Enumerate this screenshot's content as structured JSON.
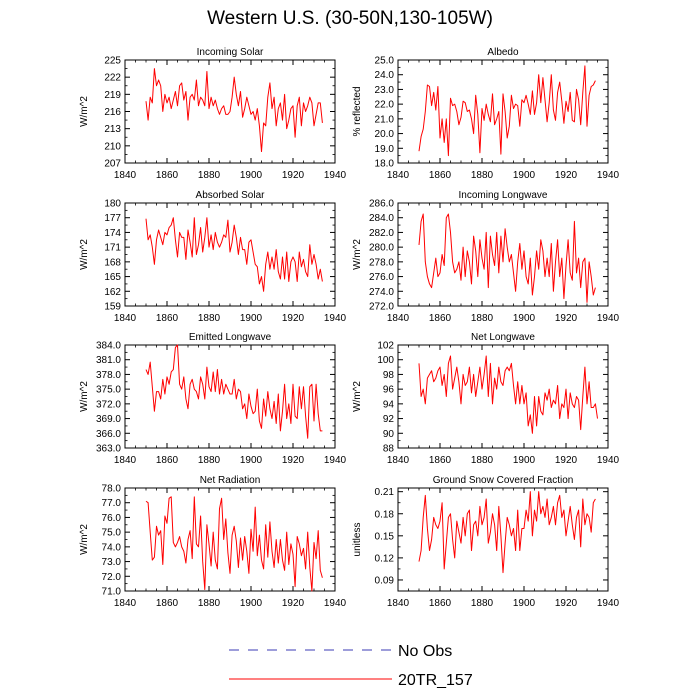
{
  "title": "Western U.S. (30-50N,130-105W)",
  "colors": {
    "model": "#ff0000",
    "obs": "#3b3bb5",
    "axis": "#000000"
  },
  "legend": [
    {
      "label": "No Obs",
      "style": "dashed",
      "color": "#3b3bb5"
    },
    {
      "label": "20TR_157",
      "style": "solid",
      "color": "#ff0000"
    }
  ],
  "chart_data": [
    {
      "type": "line",
      "title": "Incoming Solar",
      "ylabel": "W/m^2",
      "xlim": [
        1840,
        1940
      ],
      "xticks": [
        1840,
        1860,
        1880,
        1900,
        1920,
        1940
      ],
      "ylim": [
        207,
        225
      ],
      "yticks": [
        207,
        210,
        213,
        216,
        219,
        222,
        225
      ],
      "x_start": 1850,
      "series": [
        {
          "name": "20TR_157",
          "values": [
            217.8,
            214.5,
            218.5,
            217.5,
            223.5,
            220.5,
            221.5,
            220.5,
            216.0,
            219.0,
            217.5,
            218.5,
            216.5,
            218.0,
            219.5,
            217.0,
            220.5,
            221.0,
            218.0,
            219.5,
            214.5,
            218.5,
            219.0,
            218.0,
            221.5,
            217.0,
            218.5,
            218.0,
            217.0,
            223.0,
            216.5,
            218.5,
            217.0,
            218.0,
            216.5,
            215.5,
            216.5,
            217.0,
            215.5,
            215.5,
            216.0,
            218.5,
            222.0,
            219.0,
            217.0,
            219.5,
            215.0,
            216.5,
            218.5,
            217.0,
            215.5,
            216.0,
            214.5,
            216.5,
            213.5,
            209.0,
            214.0,
            213.5,
            218.5,
            221.0,
            216.5,
            218.5,
            213.5,
            216.5,
            217.5,
            214.5,
            219.0,
            213.0,
            214.5,
            216.5,
            217.0,
            211.5,
            217.0,
            218.5,
            213.5,
            217.5,
            216.0,
            217.0,
            218.5,
            217.5,
            213.5,
            215.5,
            217.5,
            217.5,
            214.0
          ]
        }
      ]
    },
    {
      "type": "line",
      "title": "Albedo",
      "ylabel": "% reflected",
      "xlim": [
        1840,
        1940
      ],
      "xticks": [
        1840,
        1860,
        1880,
        1900,
        1920,
        1940
      ],
      "ylim": [
        18.0,
        25.0
      ],
      "yticks": [
        "18.0",
        "19.0",
        "20.0",
        "21.0",
        "22.0",
        "23.0",
        "24.0",
        "25.0"
      ],
      "x_start": 1850,
      "series": [
        {
          "name": "20TR_157",
          "values": [
            18.8,
            19.8,
            20.3,
            21.5,
            23.3,
            23.2,
            21.9,
            22.8,
            21.6,
            23.2,
            19.7,
            21.0,
            19.4,
            21.0,
            18.5,
            22.4,
            21.9,
            22.0,
            21.5,
            20.6,
            21.1,
            22.2,
            22.1,
            21.5,
            21.6,
            21.0,
            20.0,
            22.6,
            21.3,
            18.7,
            21.7,
            20.9,
            22.0,
            21.3,
            20.8,
            22.7,
            20.6,
            21.0,
            21.5,
            18.6,
            22.7,
            21.5,
            19.7,
            20.5,
            22.6,
            21.7,
            22.0,
            21.9,
            20.5,
            22.3,
            22.1,
            22.6,
            22.0,
            21.3,
            22.9,
            21.3,
            22.1,
            24.0,
            22.1,
            23.8,
            22.3,
            20.8,
            22.1,
            24.0,
            21.6,
            20.9,
            22.8,
            23.5,
            22.2,
            20.7,
            22.2,
            21.5,
            22.8,
            20.9,
            20.8,
            23.0,
            22.3,
            20.6,
            22.8,
            24.6,
            20.5,
            22.6,
            23.2,
            23.3,
            23.6
          ]
        }
      ]
    },
    {
      "type": "line",
      "title": "Absorbed Solar",
      "ylabel": "W/m^2",
      "xlim": [
        1840,
        1940
      ],
      "xticks": [
        1840,
        1860,
        1880,
        1900,
        1920,
        1940
      ],
      "ylim": [
        159,
        180
      ],
      "yticks": [
        159,
        162,
        165,
        168,
        171,
        174,
        177,
        180
      ],
      "x_start": 1850,
      "series": [
        {
          "name": "20TR_157",
          "values": [
            176.8,
            172.5,
            173.5,
            171.0,
            167.5,
            172.5,
            174.5,
            173.0,
            171.5,
            174.0,
            173.5,
            175.0,
            175.5,
            177.0,
            172.5,
            169.0,
            174.0,
            173.0,
            173.0,
            168.5,
            174.5,
            172.0,
            169.0,
            177.0,
            169.5,
            171.5,
            175.0,
            170.0,
            173.0,
            177.0,
            171.0,
            173.5,
            170.5,
            174.0,
            172.0,
            171.0,
            172.0,
            173.5,
            173.0,
            176.5,
            170.0,
            172.0,
            175.5,
            173.0,
            169.5,
            173.0,
            170.5,
            170.5,
            167.5,
            172.0,
            172.5,
            170.0,
            167.5,
            167.0,
            163.5,
            165.0,
            162.0,
            167.5,
            170.0,
            166.5,
            169.0,
            166.5,
            170.5,
            166.0,
            164.5,
            169.0,
            164.5,
            170.0,
            164.0,
            168.0,
            169.0,
            168.0,
            164.0,
            170.0,
            167.0,
            168.5,
            166.0,
            165.0,
            171.5,
            167.5,
            169.5,
            167.5,
            164.5,
            166.5,
            164.0
          ]
        }
      ]
    },
    {
      "type": "line",
      "title": "Incoming Longwave",
      "ylabel": "W/m^2",
      "xlim": [
        1840,
        1940
      ],
      "xticks": [
        1840,
        1860,
        1880,
        1900,
        1920,
        1940
      ],
      "ylim": [
        272.0,
        286.0
      ],
      "yticks": [
        "272.0",
        "274.0",
        "276.0",
        "278.0",
        "280.0",
        "282.0",
        "284.0",
        "286.0"
      ],
      "x_start": 1850,
      "series": [
        {
          "name": "20TR_157",
          "values": [
            280.3,
            283.5,
            284.5,
            278.0,
            276.0,
            275.0,
            274.5,
            276.5,
            278.5,
            276.0,
            276.5,
            279.0,
            277.5,
            284.0,
            284.5,
            282.0,
            278.0,
            276.5,
            277.0,
            278.0,
            275.5,
            280.0,
            276.0,
            279.5,
            278.0,
            275.0,
            281.5,
            279.5,
            276.0,
            281.0,
            278.5,
            277.0,
            282.0,
            274.5,
            281.5,
            279.0,
            277.5,
            282.0,
            276.5,
            281.5,
            278.0,
            282.5,
            280.0,
            278.0,
            279.0,
            276.5,
            274.0,
            278.0,
            280.5,
            277.0,
            279.5,
            276.0,
            275.0,
            278.5,
            273.5,
            276.0,
            279.5,
            277.0,
            281.0,
            279.5,
            276.0,
            278.5,
            276.0,
            280.5,
            274.0,
            278.0,
            281.0,
            276.0,
            278.5,
            273.0,
            277.5,
            281.0,
            276.5,
            275.5,
            283.5,
            276.5,
            278.5,
            274.5,
            278.0,
            278.5,
            272.5,
            278.0,
            276.0,
            273.5,
            274.5
          ]
        }
      ]
    },
    {
      "type": "line",
      "title": "Emitted Longwave",
      "ylabel": "W/m^2",
      "xlim": [
        1840,
        1940
      ],
      "xticks": [
        1840,
        1860,
        1880,
        1900,
        1920,
        1940
      ],
      "ylim": [
        363.0,
        384.0
      ],
      "yticks": [
        "363.0",
        "366.0",
        "369.0",
        "372.0",
        "375.0",
        "378.0",
        "381.0",
        "384.0"
      ],
      "x_start": 1850,
      "series": [
        {
          "name": "20TR_157",
          "values": [
            379.0,
            378.0,
            380.5,
            375.5,
            370.5,
            374.5,
            374.5,
            373.0,
            377.0,
            374.0,
            377.5,
            376.0,
            378.5,
            379.0,
            383.5,
            384.0,
            376.0,
            375.0,
            377.5,
            373.0,
            371.0,
            376.0,
            377.0,
            375.0,
            374.5,
            373.0,
            377.5,
            376.0,
            373.0,
            379.5,
            375.5,
            374.5,
            378.5,
            374.5,
            379.0,
            374.0,
            377.0,
            374.0,
            376.0,
            375.0,
            374.0,
            374.0,
            377.0,
            373.0,
            375.0,
            374.5,
            371.0,
            372.0,
            369.0,
            374.0,
            371.5,
            370.0,
            370.5,
            375.0,
            368.5,
            367.0,
            373.0,
            369.5,
            374.5,
            371.0,
            369.0,
            372.5,
            368.0,
            374.0,
            366.5,
            370.5,
            376.0,
            369.0,
            372.0,
            368.0,
            376.0,
            369.5,
            369.0,
            375.5,
            371.0,
            375.5,
            369.5,
            365.0,
            375.5,
            376.0,
            368.5,
            376.0,
            370.0,
            366.5,
            366.5
          ]
        }
      ]
    },
    {
      "type": "line",
      "title": "Net Longwave",
      "ylabel": "W/m^2",
      "xlim": [
        1840,
        1940
      ],
      "xticks": [
        1840,
        1860,
        1880,
        1900,
        1920,
        1940
      ],
      "ylim": [
        88,
        102
      ],
      "yticks": [
        88,
        90,
        92,
        94,
        96,
        98,
        100,
        102
      ],
      "x_start": 1850,
      "series": [
        {
          "name": "20TR_157",
          "values": [
            99.5,
            95.0,
            96.0,
            94.0,
            97.5,
            98.0,
            98.5,
            97.0,
            97.5,
            98.5,
            99.0,
            96.5,
            98.0,
            95.0,
            99.5,
            100.5,
            96.0,
            97.5,
            99.0,
            97.0,
            94.0,
            98.0,
            96.5,
            97.0,
            99.0,
            95.5,
            98.0,
            95.0,
            97.0,
            99.0,
            96.0,
            98.0,
            100.5,
            95.0,
            99.5,
            94.0,
            97.5,
            96.0,
            99.0,
            97.0,
            96.5,
            98.5,
            99.0,
            98.5,
            99.5,
            96.5,
            94.0,
            97.0,
            94.0,
            96.5,
            94.0,
            95.5,
            91.0,
            92.5,
            90.0,
            95.0,
            91.0,
            95.0,
            93.0,
            92.5,
            95.5,
            94.5,
            96.0,
            93.5,
            94.5,
            94.0,
            96.5,
            92.0,
            94.0,
            93.5,
            96.0,
            92.0,
            95.5,
            94.0,
            93.5,
            95.0,
            94.5,
            90.5,
            95.0,
            99.0,
            94.0,
            97.0,
            93.5,
            93.5,
            94.0,
            92.0
          ]
        }
      ]
    },
    {
      "type": "line",
      "title": "Net Radiation",
      "ylabel": "W/m^2",
      "xlim": [
        1840,
        1940
      ],
      "xticks": [
        1840,
        1860,
        1880,
        1900,
        1920,
        1940
      ],
      "ylim": [
        71.0,
        78.0
      ],
      "yticks": [
        "71.0",
        "72.0",
        "73.0",
        "74.0",
        "75.0",
        "76.0",
        "77.0",
        "78.0"
      ],
      "x_start": 1850,
      "series": [
        {
          "name": "20TR_157",
          "values": [
            77.1,
            77.0,
            75.0,
            73.1,
            73.3,
            75.4,
            74.8,
            75.1,
            72.8,
            76.1,
            75.6,
            77.3,
            77.4,
            74.3,
            74.0,
            74.3,
            74.7,
            74.0,
            73.7,
            72.9,
            74.5,
            75.1,
            73.2,
            77.4,
            74.2,
            74.0,
            76.1,
            73.0,
            71.1,
            75.5,
            74.2,
            72.7,
            75.0,
            73.1,
            72.5,
            76.6,
            77.3,
            74.5,
            75.9,
            73.6,
            72.2,
            74.8,
            75.4,
            74.4,
            72.6,
            74.6,
            73.1,
            74.7,
            73.7,
            72.2,
            75.2,
            73.7,
            76.7,
            73.4,
            74.8,
            73.1,
            72.5,
            75.5,
            73.3,
            75.7,
            73.7,
            72.6,
            74.5,
            72.9,
            74.5,
            73.1,
            72.4,
            75.0,
            72.8,
            74.2,
            73.5,
            71.3,
            74.7,
            74.2,
            73.4,
            73.9,
            72.5,
            75.0,
            72.6,
            71.0,
            74.3,
            73.2,
            75.1,
            72.4,
            71.9
          ]
        }
      ]
    },
    {
      "type": "line",
      "title": "Ground Snow Covered Fraction",
      "ylabel": "unitless",
      "xlim": [
        1840,
        1940
      ],
      "xticks": [
        1840,
        1860,
        1880,
        1900,
        1920,
        1940
      ],
      "ylim": [
        0.075,
        0.215
      ],
      "yticks": [
        "0.09",
        "0.12",
        "0.15",
        "0.18",
        "0.21"
      ],
      "y_ticks_numeric": [
        0.09,
        0.12,
        0.15,
        0.18,
        0.21
      ],
      "x_start": 1850,
      "series": [
        {
          "name": "20TR_157",
          "values": [
            0.115,
            0.13,
            0.175,
            0.205,
            0.16,
            0.13,
            0.145,
            0.175,
            0.165,
            0.16,
            0.17,
            0.195,
            0.105,
            0.14,
            0.175,
            0.18,
            0.145,
            0.12,
            0.17,
            0.155,
            0.14,
            0.175,
            0.15,
            0.18,
            0.185,
            0.13,
            0.165,
            0.17,
            0.15,
            0.19,
            0.165,
            0.175,
            0.2,
            0.14,
            0.155,
            0.18,
            0.165,
            0.13,
            0.19,
            0.15,
            0.1,
            0.14,
            0.175,
            0.165,
            0.15,
            0.16,
            0.13,
            0.185,
            0.13,
            0.16,
            0.16,
            0.185,
            0.17,
            0.21,
            0.15,
            0.185,
            0.17,
            0.21,
            0.18,
            0.19,
            0.175,
            0.2,
            0.165,
            0.175,
            0.19,
            0.165,
            0.195,
            0.205,
            0.175,
            0.185,
            0.15,
            0.17,
            0.19,
            0.165,
            0.145,
            0.175,
            0.185,
            0.135,
            0.2,
            0.165,
            0.18,
            0.175,
            0.155,
            0.195,
            0.2
          ]
        }
      ]
    }
  ]
}
